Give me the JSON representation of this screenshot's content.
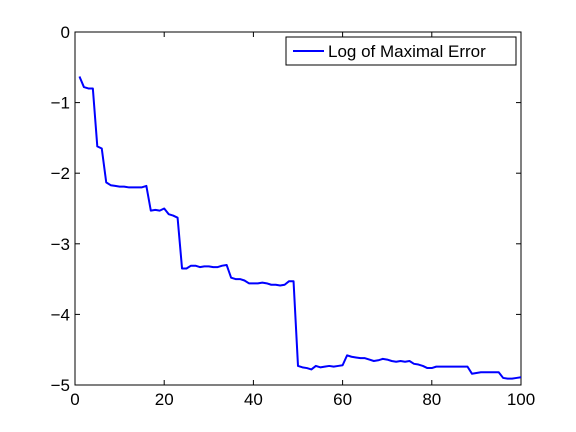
{
  "chart_data": {
    "type": "line",
    "title": "",
    "xlabel": "",
    "ylabel": "",
    "xlim": [
      0,
      100
    ],
    "ylim": [
      -5,
      0
    ],
    "xticks": [
      0,
      20,
      40,
      60,
      80,
      100
    ],
    "yticks": [
      0,
      -1,
      -2,
      -3,
      -4,
      -5
    ],
    "grid": false,
    "legend_position": "top-right",
    "series": [
      {
        "name": "Log of Maximal Error",
        "color": "#0000ff",
        "x": [
          1,
          2,
          3,
          4,
          5,
          6,
          7,
          8,
          9,
          10,
          11,
          12,
          13,
          14,
          15,
          16,
          17,
          18,
          19,
          20,
          21,
          22,
          23,
          24,
          25,
          26,
          27,
          28,
          29,
          30,
          31,
          32,
          33,
          34,
          35,
          36,
          37,
          38,
          39,
          40,
          41,
          42,
          43,
          44,
          45,
          46,
          47,
          48,
          49,
          50,
          51,
          52,
          53,
          54,
          55,
          56,
          57,
          58,
          59,
          60,
          61,
          62,
          63,
          64,
          65,
          66,
          67,
          68,
          69,
          70,
          71,
          72,
          73,
          74,
          75,
          76,
          77,
          78,
          79,
          80,
          81,
          82,
          83,
          84,
          85,
          86,
          87,
          88,
          89,
          90,
          91,
          92,
          93,
          94,
          95,
          96,
          97,
          98,
          99,
          100
        ],
        "y": [
          -0.63,
          -0.78,
          -0.8,
          -0.8,
          -1.62,
          -1.65,
          -2.13,
          -2.17,
          -2.18,
          -2.19,
          -2.19,
          -2.2,
          -2.2,
          -2.2,
          -2.2,
          -2.18,
          -2.53,
          -2.52,
          -2.53,
          -2.5,
          -2.58,
          -2.6,
          -2.63,
          -3.35,
          -3.35,
          -3.31,
          -3.31,
          -3.33,
          -3.32,
          -3.32,
          -3.33,
          -3.33,
          -3.31,
          -3.3,
          -3.48,
          -3.5,
          -3.5,
          -3.52,
          -3.56,
          -3.56,
          -3.56,
          -3.55,
          -3.56,
          -3.58,
          -3.58,
          -3.59,
          -3.58,
          -3.53,
          -3.53,
          -4.73,
          -4.75,
          -4.76,
          -4.78,
          -4.73,
          -4.75,
          -4.74,
          -4.73,
          -4.74,
          -4.73,
          -4.72,
          -4.58,
          -4.6,
          -4.61,
          -4.62,
          -4.62,
          -4.64,
          -4.66,
          -4.65,
          -4.63,
          -4.64,
          -4.66,
          -4.67,
          -4.66,
          -4.67,
          -4.66,
          -4.7,
          -4.71,
          -4.73,
          -4.76,
          -4.76,
          -4.74,
          -4.74,
          -4.74,
          -4.74,
          -4.74,
          -4.74,
          -4.74,
          -4.74,
          -4.84,
          -4.83,
          -4.82,
          -4.82,
          -4.82,
          -4.82,
          -4.82,
          -4.9,
          -4.91,
          -4.91,
          -4.9,
          -4.89
        ]
      }
    ]
  }
}
